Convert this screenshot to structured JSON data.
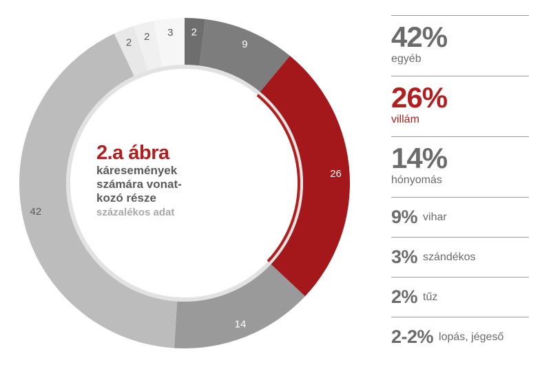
{
  "chart_data": {
    "type": "pie",
    "style": "donut",
    "title": "2.a ábra",
    "subtitle_lines": [
      "káresemények",
      "számára vonat-",
      "kozó része"
    ],
    "note": "százalékos adat",
    "slices": [
      {
        "label": "2",
        "value": 2,
        "color": "#6e6e6e",
        "text_color": "#ffffff"
      },
      {
        "label": "9",
        "value": 9,
        "color": "#7d7d7d",
        "text_color": "#ffffff"
      },
      {
        "label": "26",
        "value": 26,
        "color": "#a4171a",
        "text_color": "#ffffff"
      },
      {
        "label": "14",
        "value": 14,
        "color": "#9a9a9a",
        "text_color": "#ffffff"
      },
      {
        "label": "42",
        "value": 42,
        "color": "#bcbcbc",
        "text_color": "#5a5a5a"
      },
      {
        "label": "2",
        "value": 2,
        "color": "#e8e8e8",
        "text_color": "#5a5a5a"
      },
      {
        "label": "2",
        "value": 2,
        "color": "#f0f0f0",
        "text_color": "#5a5a5a"
      },
      {
        "label": "3",
        "value": 3,
        "color": "#f6f6f6",
        "text_color": "#5a5a5a"
      }
    ],
    "accent_color": "#b01e1e"
  },
  "legend": [
    {
      "pct": "42%",
      "label": "egyéb",
      "size": "big",
      "accent": false
    },
    {
      "pct": "26%",
      "label": "villám",
      "size": "big",
      "accent": true
    },
    {
      "pct": "14%",
      "label": "hónyomás",
      "size": "big",
      "accent": false
    },
    {
      "pct": "9%",
      "label": "vihar",
      "size": "small",
      "accent": false
    },
    {
      "pct": "3%",
      "label": "szándékos",
      "size": "small",
      "accent": false
    },
    {
      "pct": "2%",
      "label": "tűz",
      "size": "small",
      "accent": false
    },
    {
      "pct": "2-2%",
      "label": "lopás, jégeső",
      "size": "small",
      "accent": false
    }
  ]
}
